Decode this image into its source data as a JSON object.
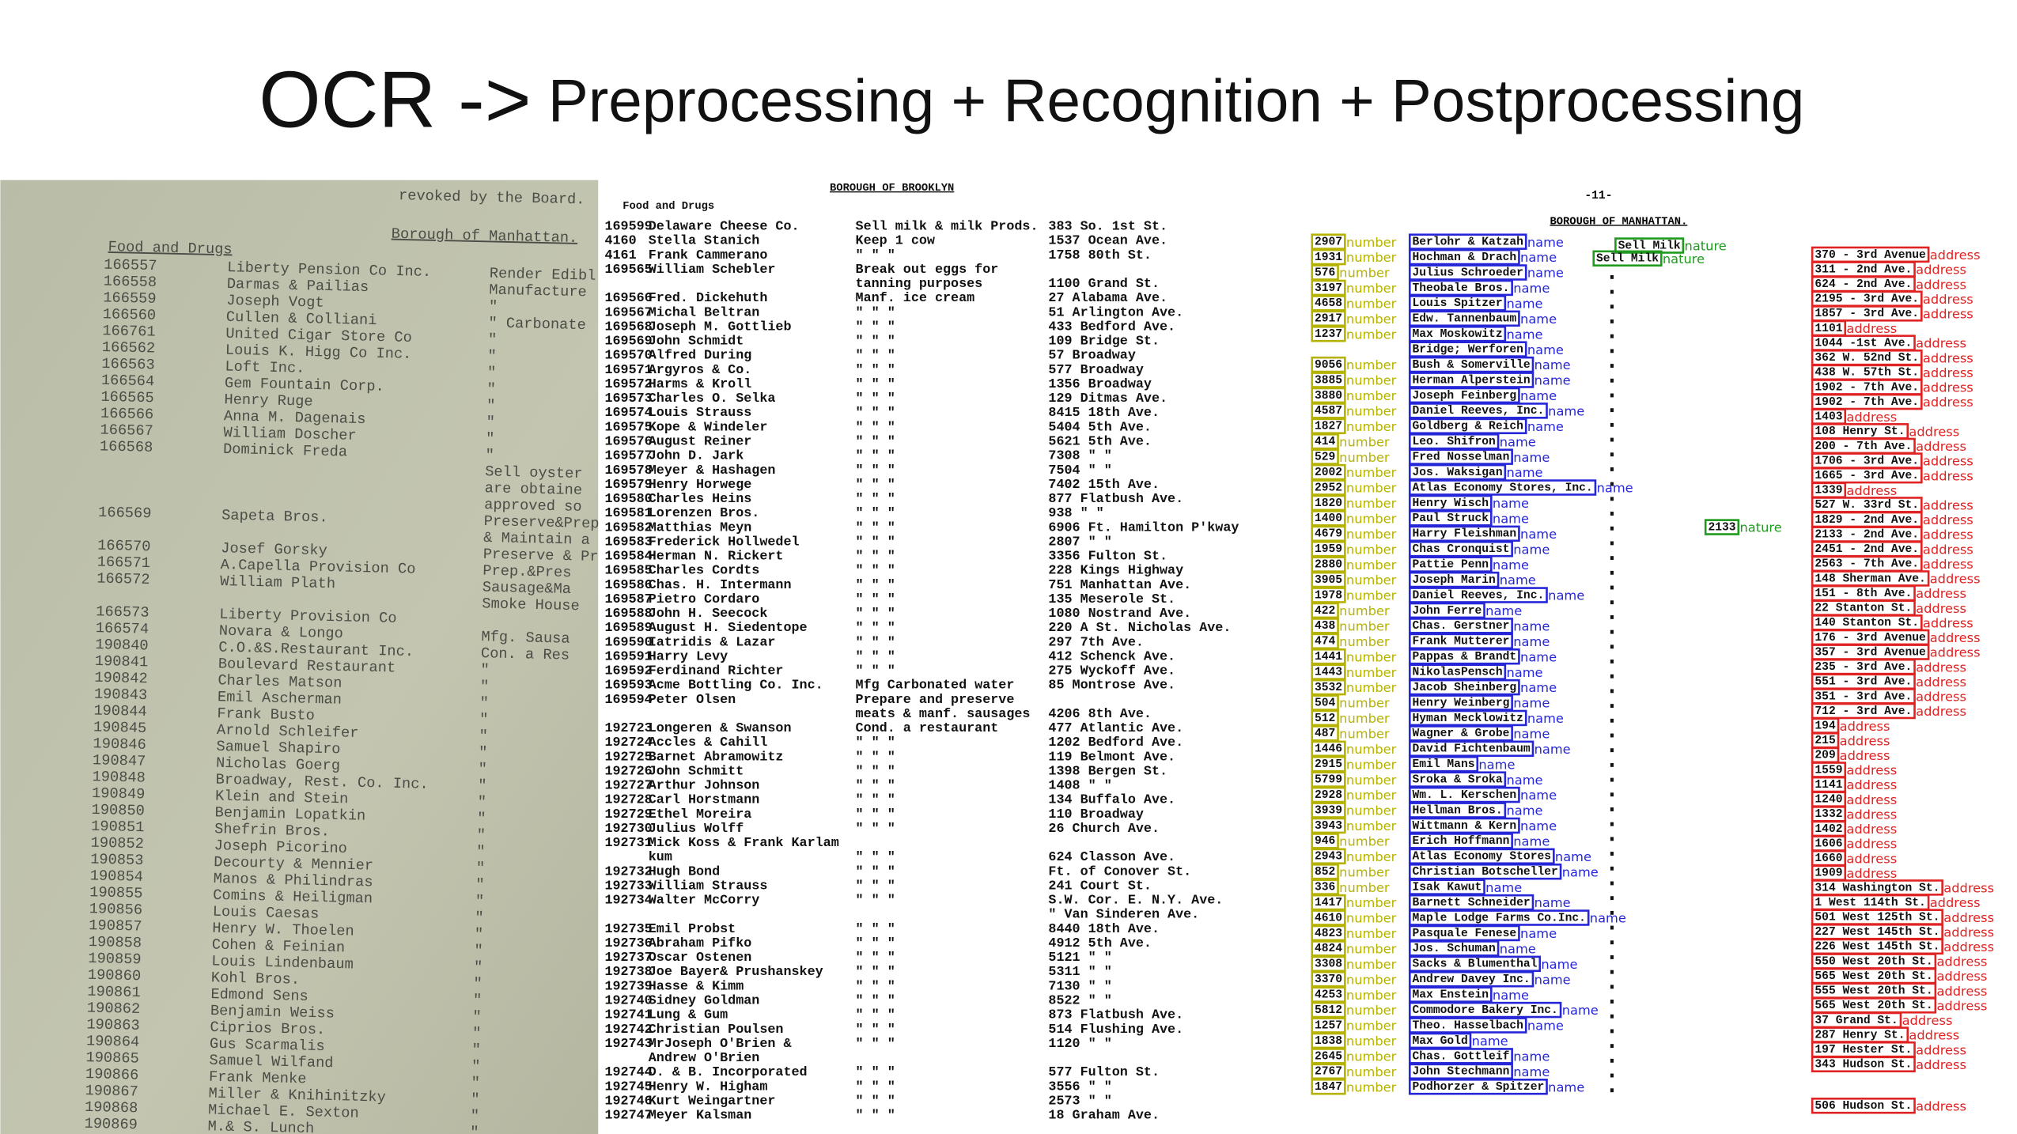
{
  "title": {
    "main": "OCR ->",
    "rest": " Preprocessing + Recognition + Postprocessing"
  },
  "left": {
    "top": "revoked by the Board.",
    "borough": "Borough of Manhattan.",
    "section": "Food and Drugs",
    "rows": [
      [
        "166557",
        "Liberty Pension Co Inc.",
        "Render Edibl"
      ],
      [
        "166558",
        "Darmas & Pailias",
        "Manufacture"
      ],
      [
        "166559",
        "Joseph Vogt",
        "\""
      ],
      [
        "166560",
        "Cullen & Colliani",
        "\"  Carbonate"
      ],
      [
        "166761",
        "United Cigar Store Co",
        "\""
      ],
      [
        "166562",
        "Louis K. Higg Co Inc.",
        "\""
      ],
      [
        "166563",
        "Loft Inc.",
        "\""
      ],
      [
        "166564",
        "Gem Fountain Corp.",
        "\""
      ],
      [
        "166565",
        "Henry Ruge",
        "\""
      ],
      [
        "166566",
        "Anna M. Dagenais",
        "\""
      ],
      [
        "166567",
        "William Doscher",
        "\""
      ],
      [
        "166568",
        "Dominick Freda",
        "\""
      ],
      [
        null,
        null,
        "Sell oyster"
      ],
      [
        null,
        null,
        "are obtaine"
      ],
      [
        null,
        null,
        "approved so"
      ],
      [
        "166569",
        "Sapeta Bros.",
        "Preserve&Prep.Meat,Mfg"
      ],
      [
        null,
        null,
        "& Maintain a Smoke Hou"
      ],
      [
        "166570",
        "Josef Gorsky",
        "Preserve & Prep. Meat"
      ],
      [
        "166571",
        "A.Capella Provision Co",
        "Prep.&Pres"
      ],
      [
        "166572",
        "William Plath",
        "Sausage&Ma"
      ],
      [
        null,
        null,
        "Smoke House"
      ],
      [
        "166573",
        "Liberty Provision Co",
        null
      ],
      [
        "166574",
        "Novara & Longo",
        "Mfg. Sausa"
      ],
      [
        "190840",
        "C.O.&S.Restaurant Inc.",
        "Con. a Res"
      ],
      [
        "190841",
        "Boulevard Restaurant",
        "\""
      ],
      [
        "190842",
        "Charles Matson",
        "\""
      ],
      [
        "190843",
        "Emil Ascherman",
        "\""
      ],
      [
        "190844",
        "Frank Busto",
        "\""
      ],
      [
        "190845",
        "Arnold Schleifer",
        "\""
      ],
      [
        "190846",
        "Samuel Shapiro",
        "\""
      ],
      [
        "190847",
        "Nicholas Goerg",
        "\""
      ],
      [
        "190848",
        "Broadway, Rest. Co. Inc.",
        "\""
      ],
      [
        "190849",
        "Klein and Stein",
        "\""
      ],
      [
        "190850",
        "Benjamin Lopatkin",
        "\""
      ],
      [
        "190851",
        "Shefrin Bros.",
        "\""
      ],
      [
        "190852",
        "Joseph Picorino",
        "\""
      ],
      [
        "190853",
        "Decourty & Mennier",
        "\""
      ],
      [
        "190854",
        "Manos & Philindras",
        "\""
      ],
      [
        "190855",
        "Comins & Heiligman",
        "\""
      ],
      [
        "190856",
        "Louis Caesas",
        "\""
      ],
      [
        "190857",
        "Henry W. Thoelen",
        "\""
      ],
      [
        "190858",
        "Cohen & Feinian",
        "\""
      ],
      [
        "190859",
        "Louis Lindenbaum",
        "\""
      ],
      [
        "190860",
        "Kohl Bros.",
        "\""
      ],
      [
        "190861",
        "Edmond Sens",
        "\""
      ],
      [
        "190862",
        "Benjamin Weiss",
        "\""
      ],
      [
        "190863",
        "Ciprios Bros.",
        "\""
      ],
      [
        "190864",
        "Gus Scarmalis",
        "\""
      ],
      [
        "190865",
        "Samuel Wilfand",
        "\""
      ],
      [
        "190866",
        "Frank Menke",
        "\""
      ],
      [
        "190867",
        "Miller & Knihinitzky",
        "\""
      ],
      [
        "190868",
        "Michael E. Sexton",
        "\""
      ],
      [
        "190869",
        "M.& S. Lunch",
        "\""
      ]
    ]
  },
  "middle": {
    "borough": "BOROUGH OF BROOKLYN",
    "section": "Food and Drugs",
    "rows": [
      [
        "169599",
        "Delaware Cheese Co.",
        "Sell milk & milk Prods.",
        "383 So. 1st St."
      ],
      [
        "4160",
        "Stella Stanich",
        "Keep 1 cow",
        "1537 Ocean Ave."
      ],
      [
        "4161",
        "Frank Cammerano",
        "\"   \"   \"",
        "1758 80th St."
      ],
      [
        "169565",
        "William Schebler",
        "Break out eggs for",
        null
      ],
      [
        null,
        null,
        "tanning purposes",
        "1100 Grand St."
      ],
      [
        "169566",
        "Fred. Dickehuth",
        "Manf. ice cream",
        "27 Alabama Ave."
      ],
      [
        "169567",
        "Michal Beltran",
        "\"   \"   \"",
        "51 Arlington Ave."
      ],
      [
        "169568",
        "Joseph M. Gottlieb",
        "\"   \"   \"",
        "433 Bedford Ave."
      ],
      [
        "169569",
        "John Schmidt",
        "\"   \"   \"",
        "109 Bridge St."
      ],
      [
        "169570",
        "Alfred During",
        "\"   \"   \"",
        "57 Broadway"
      ],
      [
        "169571",
        "Argyros & Co.",
        "\"   \"   \"",
        "577 Broadway"
      ],
      [
        "169572",
        "Harms & Kroll",
        "\"   \"   \"",
        "1356 Broadway"
      ],
      [
        "169573",
        "Charles O. Selka",
        "\"   \"   \"",
        "129 Ditmas Ave."
      ],
      [
        "169574",
        "Louis Strauss",
        "\"   \"   \"",
        "8415 18th Ave."
      ],
      [
        "169575",
        "Kope & Windeler",
        "\"   \"   \"",
        "5404 5th Ave."
      ],
      [
        "169576",
        "August Reiner",
        "\"   \"   \"",
        "5621 5th Ave."
      ],
      [
        "169577",
        "John D. Jark",
        "\"   \"   \"",
        "7308  \"  \""
      ],
      [
        "169578",
        "Meyer & Hashagen",
        "\"   \"   \"",
        "7504  \"  \""
      ],
      [
        "169579",
        "Henry Horwege",
        "\"   \"   \"",
        "7402 15th Ave."
      ],
      [
        "169580",
        "Charles Heins",
        "\"   \"   \"",
        "877 Flatbush Ave."
      ],
      [
        "169581",
        "Lorenzen Bros.",
        "\"   \"   \"",
        "938  \"  \""
      ],
      [
        "169582",
        "Matthias Meyn",
        "\"   \"   \"",
        "6906 Ft. Hamilton P'kway"
      ],
      [
        "169583",
        "Frederick Hollwedel",
        "\"   \"   \"",
        "2807  \"  \""
      ],
      [
        "169584",
        "Herman N. Rickert",
        "\"   \"   \"",
        "3356 Fulton St."
      ],
      [
        "169585",
        "Charles Cordts",
        "\"   \"   \"",
        "228 Kings Highway"
      ],
      [
        "169586",
        "Chas. H. Intermann",
        "\"   \"   \"",
        "751 Manhattan Ave."
      ],
      [
        "169587",
        "Pietro Cordaro",
        "\"   \"   \"",
        "135 Meserole St."
      ],
      [
        "169588",
        "John H. Seecock",
        "\"   \"   \"",
        "1080 Nostrand Ave."
      ],
      [
        "169589",
        "August H. Siedentope",
        "\"   \"   \"",
        "220 A St. Nicholas Ave."
      ],
      [
        "169590",
        "Iatridis & Lazar",
        "\"   \"   \"",
        "297 7th Ave."
      ],
      [
        "169591",
        "Harry Levy",
        "\"   \"   \"",
        "412 Schenck Ave."
      ],
      [
        "169592",
        "Ferdinand Richter",
        "\"   \"   \"",
        "275 Wyckoff Ave."
      ],
      [
        "169593",
        "Acme Bottling Co. Inc.",
        "Mfg Carbonated water",
        "85 Montrose Ave."
      ],
      [
        "169594",
        "Peter Olsen",
        "Prepare and preserve",
        null
      ],
      [
        null,
        null,
        "meats & manf. sausages",
        "4206 8th Ave."
      ],
      [
        "192723",
        "Longeren & Swanson",
        "Cond. a restaurant",
        "477 Atlantic Ave."
      ],
      [
        "192724",
        "Accles & Cahill",
        "\"   \"   \"",
        "1202 Bedford Ave."
      ],
      [
        "192725",
        "Barnet Abramowitz",
        "\"   \"   \"",
        "119 Belmont Ave."
      ],
      [
        "192726",
        "John Schmitt",
        "\"   \"   \"",
        "1398 Bergen St."
      ],
      [
        "192727",
        "Arthur Johnson",
        "\"   \"   \"",
        "1408  \"  \""
      ],
      [
        "192728",
        "Carl Horstmann",
        "\"   \"   \"",
        "134 Buffalo Ave."
      ],
      [
        "192729",
        "Ethel Moreira",
        "\"   \"   \"",
        "110 Broadway"
      ],
      [
        "192730",
        "Julius Wolff",
        "\"   \"   \"",
        "26 Church Ave."
      ],
      [
        "192731",
        "Mick Koss & Frank Karlam",
        null,
        null
      ],
      [
        null,
        "kum",
        "\"   \"   \"",
        "624 Classon Ave."
      ],
      [
        "192732",
        "Hugh Bond",
        "\"   \"   \"",
        "Ft. of Conover St."
      ],
      [
        "192733",
        "William Strauss",
        "\"   \"   \"",
        "241 Court St."
      ],
      [
        "192734",
        "Walter McCorry",
        "\"   \"   \"",
        "S.W. Cor. E. N.Y. Ave."
      ],
      [
        null,
        null,
        null,
        "\" Van Sinderen Ave."
      ],
      [
        "192735",
        "Emil Probst",
        "\"   \"   \"",
        "8440 18th Ave."
      ],
      [
        "192736",
        "Abraham Pifko",
        "\"   \"   \"",
        "4912 5th Ave."
      ],
      [
        "192737",
        "Oscar Ostenen",
        "\"   \"   \"",
        "5121  \"  \""
      ],
      [
        "192738",
        "Joe Bayer& Prushanskey",
        "\"   \"   \"",
        "5311  \"  \""
      ],
      [
        "192739",
        "Hasse & Kimm",
        "\"   \"   \"",
        "7130  \"  \""
      ],
      [
        "192740",
        "Sidney Goldman",
        "\"   \"   \"",
        "8522  \"  \""
      ],
      [
        "192741",
        "Lung & Gum",
        "\"   \"   \"",
        "873 Flatbush Ave."
      ],
      [
        "192742",
        "Christian Poulsen",
        "\"   \"   \"",
        "514 Flushing Ave."
      ],
      [
        "192743",
        "MrJoseph O'Brien &",
        "\"   \"   \"",
        "1120  \"  \""
      ],
      [
        null,
        "Andrew O'Brien",
        null,
        null
      ],
      [
        "192744",
        "D. & B. Incorporated",
        "\"   \"   \"",
        "577 Fulton St."
      ],
      [
        "192745",
        "Henry W. Higham",
        "\"   \"   \"",
        "3556  \"  \""
      ],
      [
        "192746",
        "Kurt Weingartner",
        "\"   \"   \"",
        "2573  \"  \""
      ],
      [
        "192747",
        "Meyer Kalsman",
        "\"   \"   \"",
        "18 Graham Ave."
      ]
    ]
  },
  "right": {
    "page": "-11-",
    "borough": "BOROUGH OF MANHATTAN.",
    "labels": {
      "number": "number",
      "name": "name",
      "nature": "nature",
      "address": "address"
    },
    "nature": [
      "Sell Milk",
      "Sell Milk",
      "2133"
    ],
    "rows": [
      [
        "2907",
        "Berlohr & Katzah"
      ],
      [
        "1931",
        "Hochman & Drach"
      ],
      [
        "576",
        "Julius Schroeder"
      ],
      [
        "3197",
        "Theobale Bros."
      ],
      [
        "4658",
        "Louis Spitzer"
      ],
      [
        "2917",
        "Edw. Tannenbaum"
      ],
      [
        "1237",
        "Max Moskowitz"
      ],
      [
        null,
        "Bridge; Werforen"
      ],
      [
        "9056",
        "Bush & Somerville"
      ],
      [
        "3885",
        "Herman Alperstein"
      ],
      [
        "3880",
        "Joseph Feinberg"
      ],
      [
        "4587",
        "Daniel Reeves, Inc."
      ],
      [
        "1827",
        "Goldberg & Reich"
      ],
      [
        "414",
        "Leo. Shifron"
      ],
      [
        "529",
        "Fred Nosselman"
      ],
      [
        "2002",
        "Jos. Waksigan"
      ],
      [
        "2952",
        "Atlas Economy Stores, Inc."
      ],
      [
        "1820",
        "Henry Wisch"
      ],
      [
        "1400",
        "Paul Struck"
      ],
      [
        "4679",
        "Harry Fleishman"
      ],
      [
        "1959",
        "Chas Cronquist"
      ],
      [
        "2880",
        "Pattie Penn"
      ],
      [
        "3905",
        "Joseph Marin"
      ],
      [
        "1978",
        "Daniel Reeves, Inc."
      ],
      [
        "422",
        "John Ferre"
      ],
      [
        "438",
        "Chas. Gerstner"
      ],
      [
        "474",
        "Frank Mutterer"
      ],
      [
        "1441",
        "Pappas & Brandt"
      ],
      [
        "1443",
        "NikolasPensch"
      ],
      [
        "3532",
        "Jacob Sheinberg"
      ],
      [
        "504",
        "Henry Weinberg"
      ],
      [
        "512",
        "Hyman Mecklowitz"
      ],
      [
        "487",
        "Wagner & Grobe"
      ],
      [
        "1446",
        "David Fichtenbaum"
      ],
      [
        "2915",
        "Emil Mans"
      ],
      [
        "5799",
        "Sroka & Sroka"
      ],
      [
        "2928",
        "Wm. L. Kerschen"
      ],
      [
        "3939",
        "Hellman Bros."
      ],
      [
        "3943",
        "Wittmann & Kern"
      ],
      [
        "946",
        "Erich Hoffmann"
      ],
      [
        "2943",
        "Atlas Economy Stores"
      ],
      [
        "852",
        "Christian Botscheller"
      ],
      [
        "336",
        "Isak Kawut"
      ],
      [
        "1417",
        "Barnett Schneider"
      ],
      [
        "4610",
        "Maple Lodge Farms Co.Inc."
      ],
      [
        "4823",
        "Pasquale Fenese"
      ],
      [
        "4824",
        "Jos. Schuman"
      ],
      [
        "3308",
        "Sacks & Blumenthal"
      ],
      [
        "3370",
        "Andrew Davey Inc."
      ],
      [
        "4253",
        "Max Enstein"
      ],
      [
        "5812",
        "Commodore Bakery Inc."
      ],
      [
        "1257",
        "Theo. Hasselbach"
      ],
      [
        "1838",
        "Max Gold"
      ],
      [
        "2645",
        "Chas. Gottleif"
      ],
      [
        "2767",
        "John Stechmann"
      ],
      [
        "1847",
        "Podhorzer & Spitzer"
      ]
    ],
    "addresses": [
      "370 - 3rd Avenue",
      "311 - 2nd Ave.",
      "624 - 2nd Ave.",
      "2195 - 3rd Ave.",
      "1857 - 3rd Ave.",
      "1101",
      "1044 -1st Ave.",
      "362 W. 52nd St.",
      "438 W. 57th St.",
      "1902 - 7th Ave.",
      "1902 - 7th Ave.",
      "1403",
      "108 Henry St.",
      "200 - 7th Ave.",
      "1706 - 3rd Ave.",
      "1665 - 3rd Ave.",
      "1339",
      "527 W. 33rd St.",
      "1829 - 2nd Ave.",
      "2133 - 2nd Ave.",
      "2451 - 2nd Ave.",
      "2563 - 7th Ave.",
      "148 Sherman Ave.",
      "151 - 8th Ave.",
      "22 Stanton St.",
      "140 Stanton St.",
      "176 - 3rd Avenue",
      "357 - 3rd Avenue",
      "235 - 3rd Ave.",
      "551 - 3rd Ave.",
      "351 - 3rd Ave.",
      "712 - 3rd Ave.",
      "194",
      "215",
      "209",
      "1559",
      "1141",
      "1240",
      "1332",
      "1402",
      "1606",
      "1660",
      "1909",
      "314 Washington St.",
      "1 West 114th St.",
      "501 West 125th St.",
      "227 West 145th St.",
      "226 West 145th St.",
      "550 West 20th St.",
      "565 West 20th St.",
      "555 West 20th St.",
      "565 West 20th St.",
      "37 Grand St.",
      "287 Henry St.",
      "197 Hester St.",
      "343 Hudson St.",
      "506 Hudson St."
    ]
  }
}
